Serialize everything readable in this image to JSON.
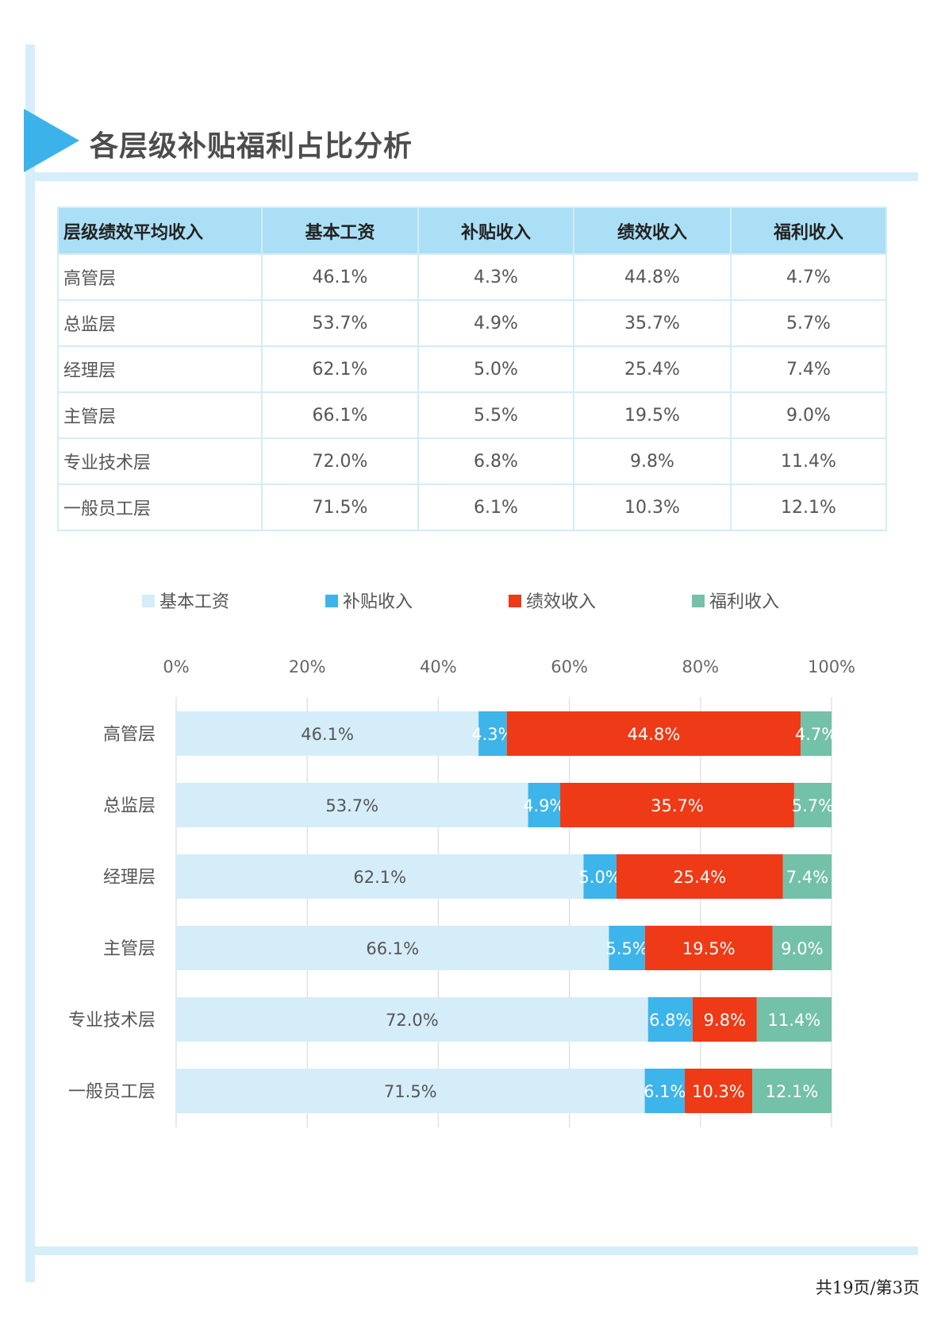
{
  "title": "各层级补贴福利占比分析",
  "table": {
    "headers": [
      "层级绩效平均收入",
      "基本工资",
      "补贴收入",
      "绩效收入",
      "福利收入"
    ],
    "rows": [
      [
        "高管层",
        "46.1%",
        "4.3%",
        "44.8%",
        "4.7%"
      ],
      [
        "总监层",
        "53.7%",
        "4.9%",
        "35.7%",
        "5.7%"
      ],
      [
        "经理层",
        "62.1%",
        "5.0%",
        "25.4%",
        "7.4%"
      ],
      [
        "主管层",
        "66.1%",
        "5.5%",
        "19.5%",
        "9.0%"
      ],
      [
        "专业技术层",
        "72.0%",
        "6.8%",
        "9.8%",
        "11.4%"
      ],
      [
        "一般员工层",
        "71.5%",
        "6.1%",
        "10.3%",
        "12.1%"
      ]
    ]
  },
  "chart_data": {
    "type": "bar",
    "orientation": "horizontal",
    "stacked": "percent",
    "categories": [
      "高管层",
      "总监层",
      "经理层",
      "主管层",
      "专业技术层",
      "一般员工层"
    ],
    "series": [
      {
        "name": "基本工资",
        "values": [
          46.1,
          53.7,
          62.1,
          66.1,
          72.0,
          71.5
        ],
        "color": "#d5edf9",
        "label_color": "#555555"
      },
      {
        "name": "补贴收入",
        "values": [
          4.3,
          4.9,
          5.0,
          5.5,
          6.8,
          6.1
        ],
        "color": "#3db4ea",
        "label_color": "#ffffff"
      },
      {
        "name": "绩效收入",
        "values": [
          44.8,
          35.7,
          25.4,
          19.5,
          9.8,
          10.3
        ],
        "color": "#ee3a16",
        "label_color": "#ffffff"
      },
      {
        "name": "福利收入",
        "values": [
          4.7,
          5.7,
          7.4,
          9.0,
          11.4,
          12.1
        ],
        "color": "#73c1a8",
        "label_color": "#ffffff"
      }
    ],
    "x_ticks": [
      "0%",
      "20%",
      "40%",
      "60%",
      "80%",
      "100%"
    ],
    "xlim": [
      0,
      100
    ],
    "grid": true,
    "legend": "top",
    "data_labels": true
  },
  "footer": {
    "page": "共19页/第3页"
  }
}
